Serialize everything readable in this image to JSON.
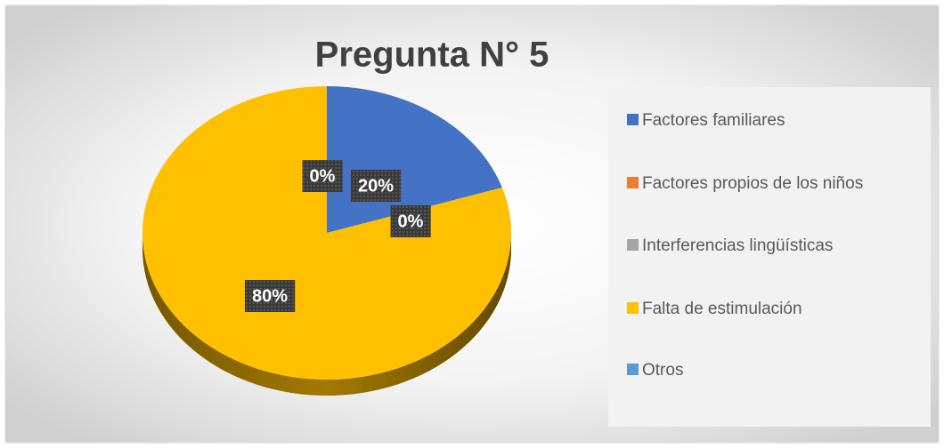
{
  "chart_data": {
    "type": "pie",
    "title": "Pregunta N° 5",
    "categories": [
      "Factores familiares",
      "Factores propios de los niños",
      "Interferencias lingüísticas",
      "Falta de estimulación",
      "Otros"
    ],
    "values": [
      20,
      0,
      0,
      80,
      0
    ],
    "value_labels": [
      "20%",
      "0%",
      null,
      "80%",
      "0%"
    ],
    "colors": [
      "#4472c4",
      "#ed7d31",
      "#a5a5a5",
      "#ffc000",
      "#5b9bd5"
    ],
    "legend": "right"
  }
}
